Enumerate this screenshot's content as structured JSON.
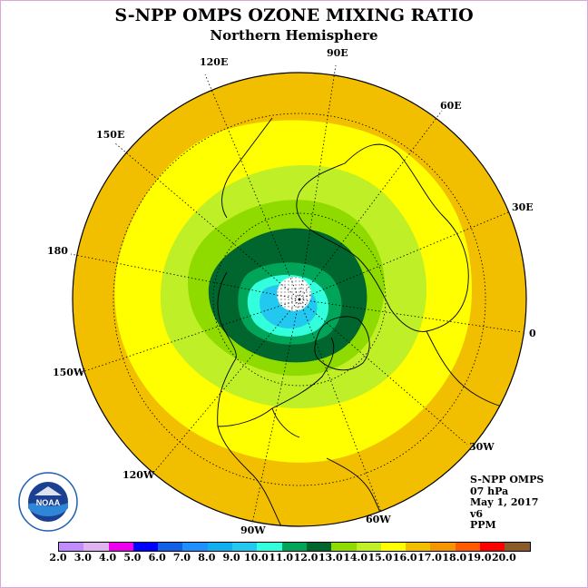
{
  "header": {
    "title": "S-NPP OMPS OZONE MIXING RATIO",
    "subtitle": "Northern Hemisphere"
  },
  "map": {
    "projection": "north-polar-stereographic",
    "land_outline_color": "#000000",
    "graticule_style": "dotted",
    "longitude_labels": [
      {
        "text": "90E",
        "lon": 90
      },
      {
        "text": "60E",
        "lon": 60
      },
      {
        "text": "30E",
        "lon": 30
      },
      {
        "text": "0",
        "lon": 0
      },
      {
        "text": "30W",
        "lon": -30
      },
      {
        "text": "60W",
        "lon": -60
      },
      {
        "text": "90W",
        "lon": -90
      },
      {
        "text": "120W",
        "lon": -120
      },
      {
        "text": "150W",
        "lon": -150
      },
      {
        "text": "180",
        "lon": 180
      },
      {
        "text": "150E",
        "lon": 150
      },
      {
        "text": "120E",
        "lon": 120
      }
    ],
    "field_bands_ppm": [
      {
        "range": "15.0-16.0",
        "region": "outer ring, low latitudes",
        "color": "#f2bf00"
      },
      {
        "range": "14.0-15.0",
        "region": "mid latitudes",
        "color": "#ffff00"
      },
      {
        "range": "13.0-14.0",
        "region": "mid-high latitudes",
        "color": "#bfef26"
      },
      {
        "range": "12.0-13.0",
        "region": "high latitudes",
        "color": "#8fdb00"
      },
      {
        "range": "11.0-12.0",
        "region": "polar collar",
        "color": "#00662e"
      },
      {
        "range": "10.0-11.0",
        "region": "polar collar inner edge",
        "color": "#00a55a"
      },
      {
        "range": "9.0-10.0",
        "region": "near pole",
        "color": "#33ffdd"
      },
      {
        "range": "8.0-9.0",
        "region": "near pole",
        "color": "#22c8f0"
      },
      {
        "range": "no data",
        "region": "pole cap",
        "color": "#ffffff"
      }
    ]
  },
  "info": {
    "product": "S-NPP OMPS",
    "level": "07 hPa",
    "date": "May 1, 2017",
    "version": "v6",
    "units": "PPM"
  },
  "colorbar": {
    "ticks": [
      "2.0",
      "3.0",
      "4.0",
      "5.0",
      "6.0",
      "7.0",
      "8.0",
      "9.0",
      "10.0",
      "11.0",
      "12.0",
      "13.0",
      "14.0",
      "15.0",
      "16.0",
      "17.0",
      "18.0",
      "19.0",
      "20.0"
    ],
    "colors": [
      "#c08cff",
      "#dfb3ef",
      "#ee00ee",
      "#0000ff",
      "#1060e8",
      "#1e90ff",
      "#10b0f0",
      "#22c8f0",
      "#33ffdd",
      "#00a55a",
      "#00662e",
      "#8fdb00",
      "#bfef26",
      "#ffff00",
      "#f2bf00",
      "#f59600",
      "#ff5a00",
      "#ff0000",
      "#8b5a2b"
    ]
  },
  "logo": {
    "text": "NOAA",
    "ring_text": "NATIONAL OCEANIC AND ATMOSPHERIC ADMINISTRATION · U.S. DEPARTMENT OF COMMERCE"
  }
}
